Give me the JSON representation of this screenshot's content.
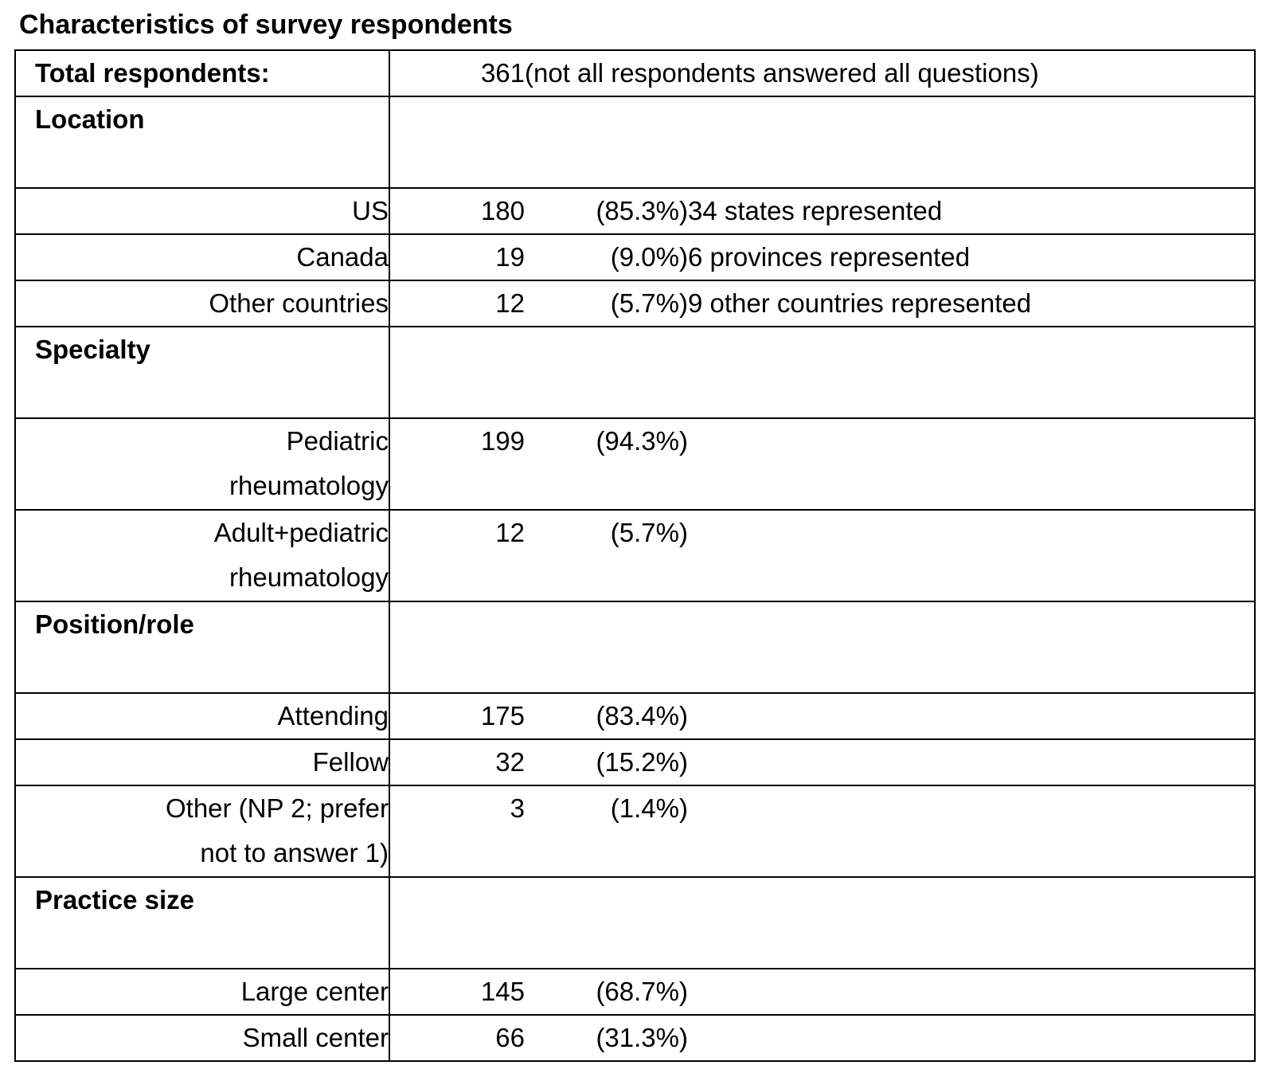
{
  "title": "Characteristics of survey respondents",
  "table": {
    "total_row": {
      "label": "Total respondents:",
      "count": "361",
      "note": "(not all respondents answered all questions)"
    },
    "sections": [
      {
        "header": "Location",
        "rows": [
          {
            "label": "US",
            "count": "180",
            "pct": "(85.3%)",
            "note": "34 states represented"
          },
          {
            "label": "Canada",
            "count": "19",
            "pct": "(9.0%)",
            "note": "6 provinces represented"
          },
          {
            "label": "Other countries",
            "count": "12",
            "pct": "(5.7%)",
            "note": "9 other countries represented"
          }
        ]
      },
      {
        "header": "Specialty",
        "rows": [
          {
            "label": "Pediatric\nrheumatology",
            "count": "199",
            "pct": "(94.3%)",
            "note": ""
          },
          {
            "label": "Adult+pediatric\nrheumatology",
            "count": "12",
            "pct": "(5.7%)",
            "note": ""
          }
        ]
      },
      {
        "header": "Position/role",
        "rows": [
          {
            "label": "Attending",
            "count": "175",
            "pct": "(83.4%)",
            "note": ""
          },
          {
            "label": "Fellow",
            "count": "32",
            "pct": "(15.2%)",
            "note": ""
          },
          {
            "label": "Other (NP 2; prefer\nnot to answer 1)",
            "count": "3",
            "pct": "(1.4%)",
            "note": ""
          }
        ]
      },
      {
        "header": "Practice size",
        "rows": [
          {
            "label": "Large center",
            "count": "145",
            "pct": "(68.7%)",
            "note": ""
          },
          {
            "label": "Small center",
            "count": "66",
            "pct": "(31.3%)",
            "note": ""
          }
        ]
      }
    ]
  }
}
